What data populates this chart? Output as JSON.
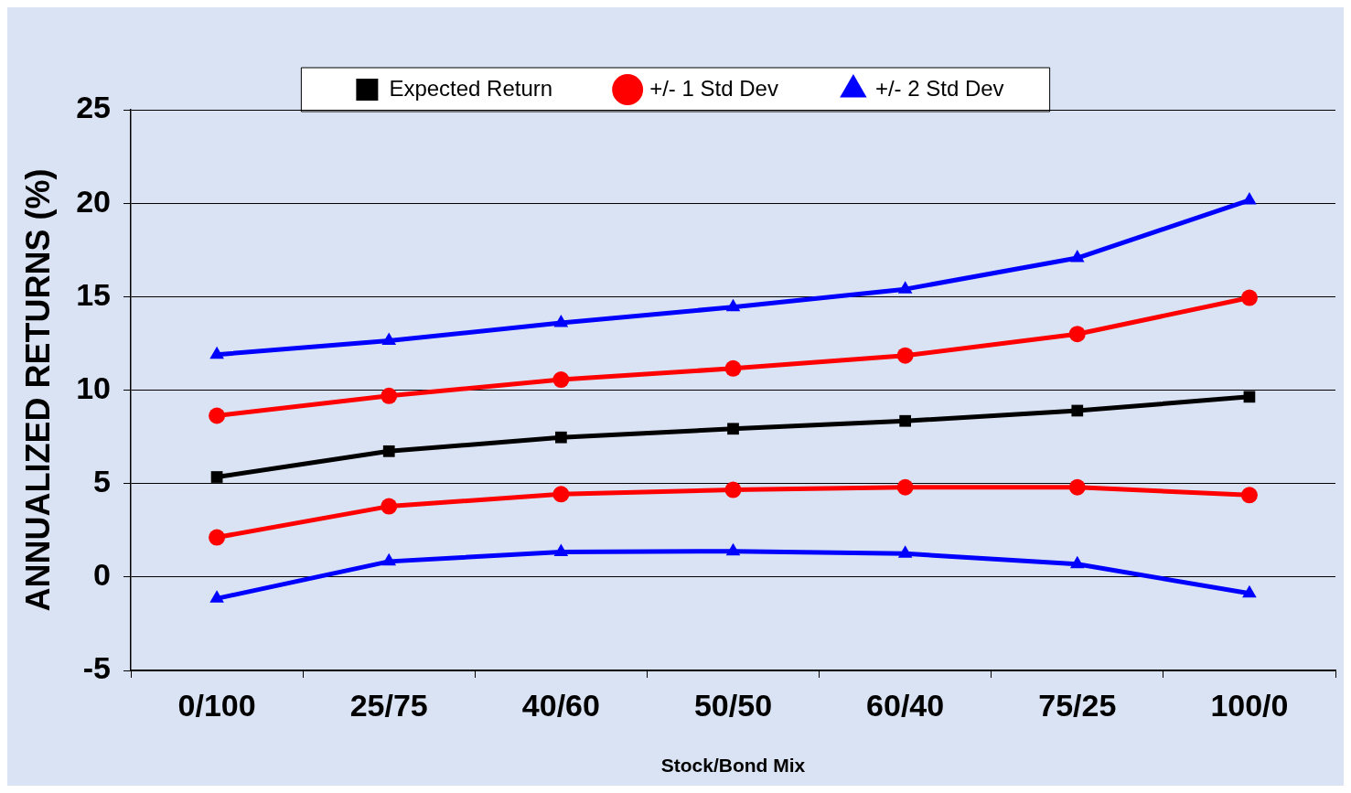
{
  "chart_data": {
    "type": "line",
    "xlabel": "Stock/Bond Mix",
    "ylabel": "ANNUALIZED RETURNS (%)",
    "categories": [
      "0/100",
      "25/75",
      "40/60",
      "50/50",
      "60/40",
      "75/25",
      "100/0"
    ],
    "series": [
      {
        "name": "Expected Return",
        "color": "#000000",
        "marker": "square",
        "values": [
          5.35,
          6.73,
          7.47,
          7.93,
          8.35,
          8.9,
          9.64
        ]
      },
      {
        "name": "+/- 1 Std Dev",
        "color": "#ff0000",
        "marker": "circle",
        "values": [
          8.63,
          9.69,
          10.56,
          11.16,
          11.85,
          13.0,
          14.94
        ]
      },
      {
        "color": "#ff0000",
        "marker": "circle",
        "values": [
          2.12,
          3.78,
          4.43,
          4.66,
          4.8,
          4.8,
          4.38
        ]
      },
      {
        "name": "+/- 2 Std Dev",
        "color": "#0000ff",
        "marker": "triangle",
        "values": [
          11.9,
          12.64,
          13.6,
          14.44,
          15.4,
          17.07,
          20.16
        ]
      },
      {
        "color": "#0000ff",
        "marker": "triangle",
        "values": [
          -1.15,
          0.83,
          1.34,
          1.38,
          1.25,
          0.69,
          -0.88
        ]
      }
    ],
    "ylim": [
      -5,
      25
    ],
    "yticks": [
      -5,
      0,
      5,
      10,
      15,
      20,
      25
    ],
    "grid": "y",
    "legend": "top",
    "line_style": "solid"
  }
}
